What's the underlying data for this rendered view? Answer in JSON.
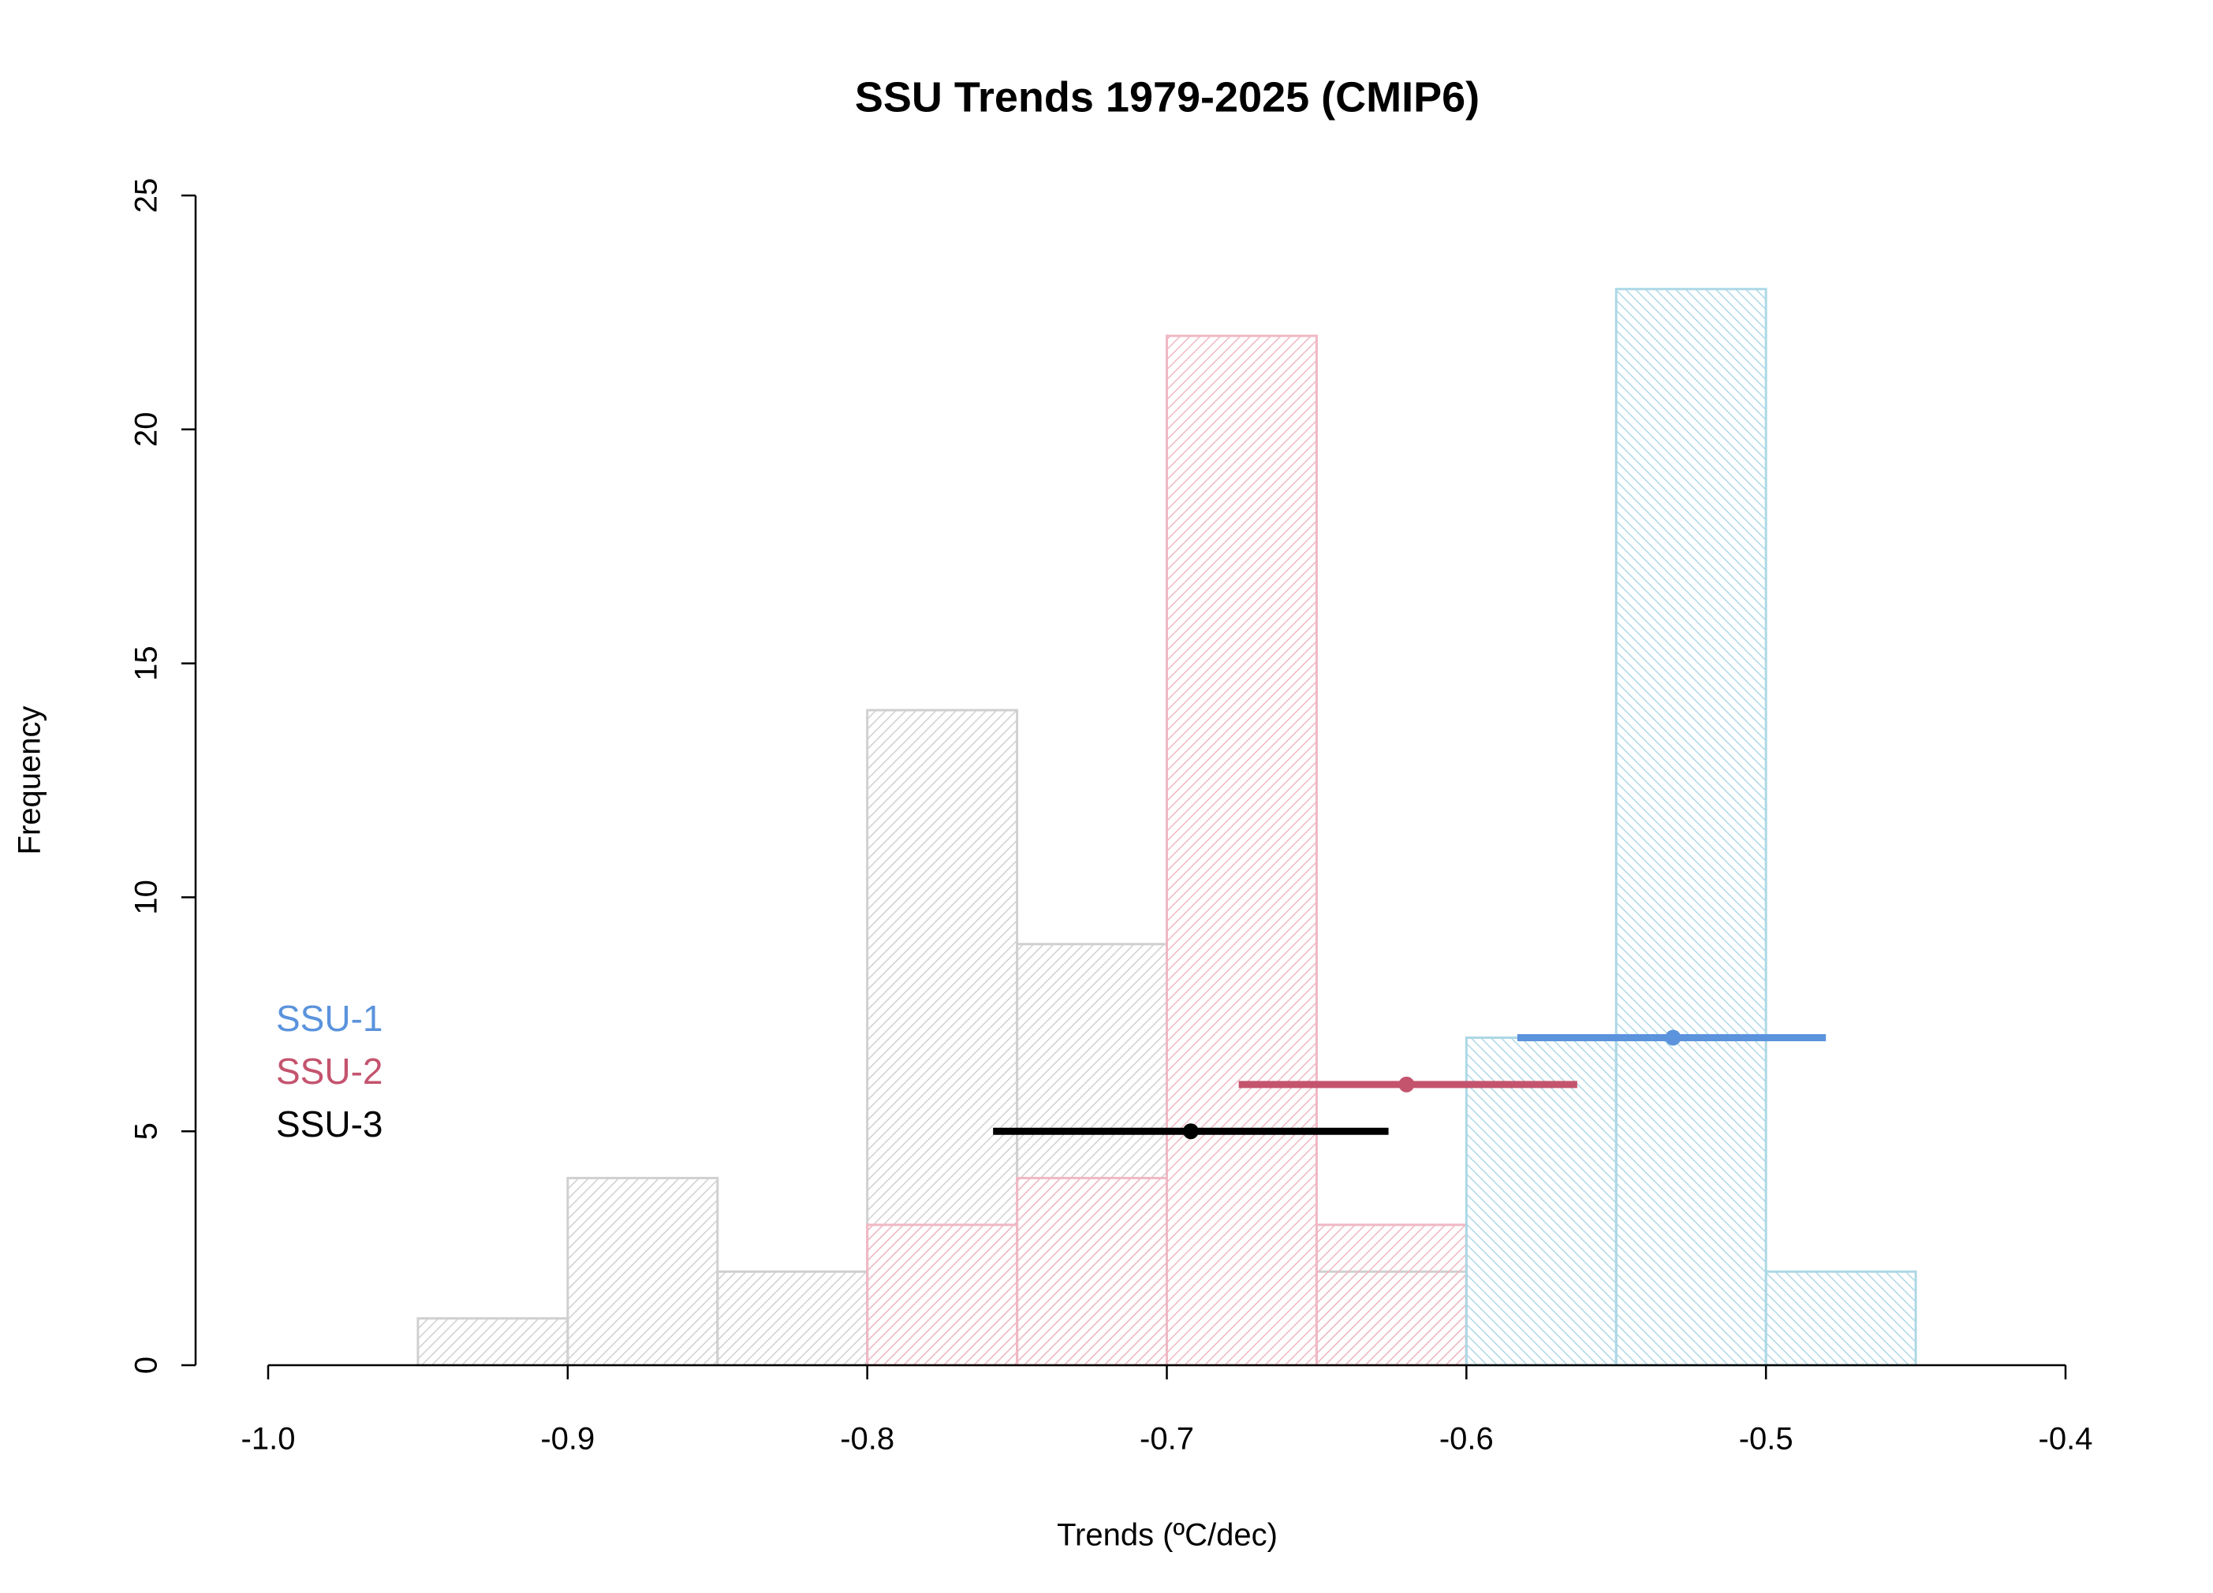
{
  "chart_data": {
    "type": "histogram",
    "title": "SSU Trends 1979-2025 (CMIP6)",
    "xlabel": "Trends (ºC/dec)",
    "ylabel": "Frequency",
    "xlim": [
      -1.0,
      -0.4
    ],
    "xticks": [
      {
        "value": -1.0,
        "label": "-1.0"
      },
      -0.9,
      -0.8,
      -0.7,
      -0.6,
      -0.5,
      -0.4
    ],
    "ylim": [
      0,
      25
    ],
    "yticks": [
      0,
      5,
      10,
      15,
      20,
      25
    ],
    "series": [
      {
        "name": "SSU-1",
        "color": "#add8e6",
        "marker_color": "#5b93dc",
        "bins": [
          -0.6,
          -0.55,
          -0.5,
          -0.45
        ],
        "counts": [
          7,
          23,
          2
        ],
        "interval": {
          "y": 7,
          "low": -0.583,
          "center": -0.531,
          "high": -0.48
        }
      },
      {
        "name": "SSU-2",
        "color": "#f0b8c4",
        "marker_color": "#c4546e",
        "bins": [
          -0.8,
          -0.75,
          -0.7,
          -0.65,
          -0.6
        ],
        "counts": [
          3,
          4,
          22,
          3
        ],
        "interval": {
          "y": 6,
          "low": -0.676,
          "center": -0.62,
          "high": -0.563
        }
      },
      {
        "name": "SSU-3",
        "color": "#d0d0d0",
        "marker_color": "#000000",
        "bins": [
          -0.95,
          -0.9,
          -0.85,
          -0.8,
          -0.75,
          -0.7,
          -0.65,
          -0.6
        ],
        "counts": [
          1,
          4,
          2,
          14,
          9,
          0,
          2
        ],
        "interval": {
          "y": 5,
          "low": -0.758,
          "center": -0.692,
          "high": -0.626
        }
      }
    ]
  }
}
